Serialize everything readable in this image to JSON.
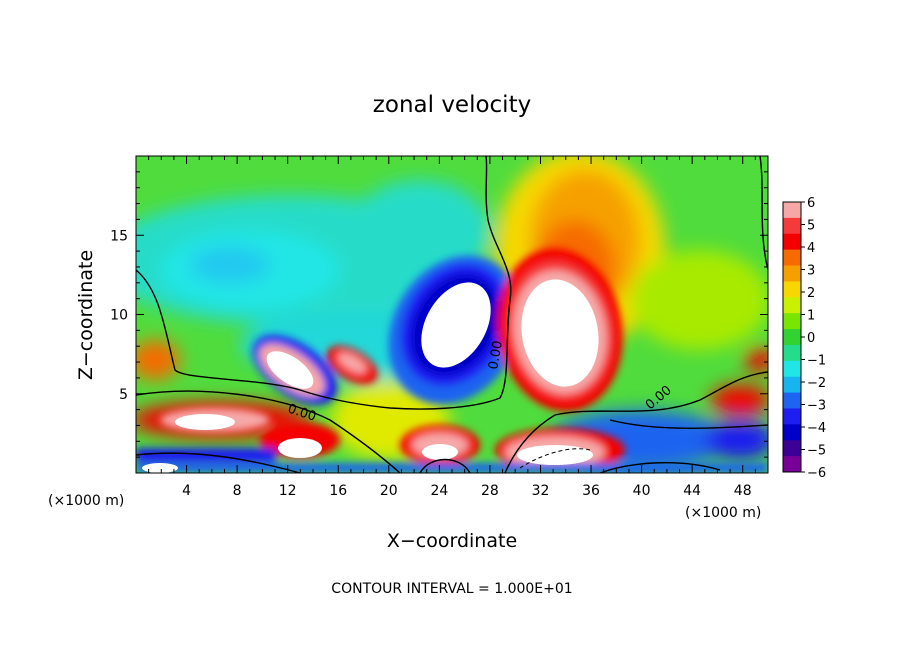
{
  "chart_data": {
    "type": "heatmap",
    "title": "zonal velocity",
    "xlabel": "X−coordinate",
    "ylabel": "Z−coordinate",
    "x_unit_label": "(×1000 m)",
    "z_unit_label": "(×1000 m)",
    "xlim": [
      0,
      50
    ],
    "ylim": [
      0,
      20
    ],
    "x_ticks": [
      4,
      8,
      12,
      16,
      20,
      24,
      28,
      32,
      36,
      40,
      44,
      48
    ],
    "y_ticks": [
      5,
      10,
      15
    ],
    "colorbar": {
      "min": -6,
      "max": 6,
      "labels": [
        "6",
        "5",
        "4",
        "3",
        "2",
        "1",
        "0",
        "−1",
        "−2",
        "−3",
        "−4",
        "−5",
        "−6"
      ],
      "colors": [
        "#f6a8a8",
        "#f43a3a",
        "#f40000",
        "#f66a00",
        "#f6a000",
        "#f6d800",
        "#c8f000",
        "#78e600",
        "#32d232",
        "#24dc8c",
        "#22e6e6",
        "#18b4f0",
        "#1e64f0",
        "#1e1ef0",
        "#0000c8",
        "#3c0096",
        "#780096"
      ]
    },
    "contour_labels": [
      "0.00",
      "0.00",
      "0.00"
    ],
    "features": [
      {
        "type": "positive_max",
        "x": [
          26,
          34
        ],
        "z": [
          4,
          13
        ]
      },
      {
        "type": "negative_max",
        "x": [
          21,
          27
        ],
        "z": [
          6,
          12
        ]
      },
      {
        "type": "negative_max",
        "x": [
          10,
          15
        ],
        "z": [
          4,
          8
        ]
      }
    ],
    "footer": "CONTOUR INTERVAL = 1.000E+01"
  }
}
